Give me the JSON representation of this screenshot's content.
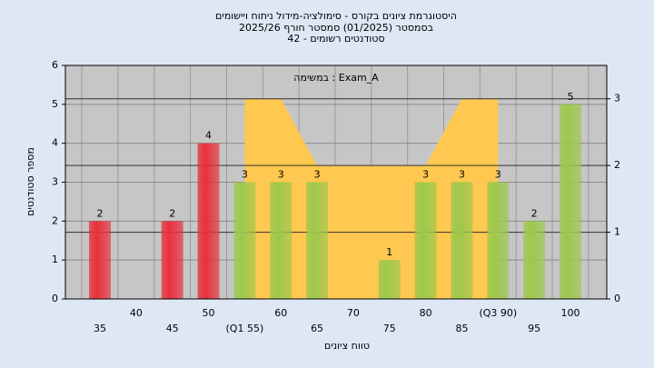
{
  "chart_data": {
    "type": "bar",
    "title": "היסטוגרמת ציונים בקורס - סימולציה-מידול ניתוח ויישומים",
    "subtitle": "בסמסטר  (01/2025)  סמסטר חורף 2025/26",
    "caption": "סטודנטים רשומים - 42",
    "annotation": "במשימה : Exam_A",
    "x_label": "טווח ציונים",
    "y_label": "מספר סטודנטים",
    "categories": [
      "35",
      "40",
      "45",
      "50",
      "(Q1 55)",
      "60",
      "65",
      "70",
      "75",
      "80",
      "85",
      "(Q3 90)",
      "95",
      "100"
    ],
    "series": [
      {
        "type": "bar",
        "values": [
          2,
          0,
          2,
          4,
          3,
          3,
          3,
          0,
          1,
          3,
          3,
          3,
          2,
          5
        ],
        "colors": [
          "#e8303c",
          "#e8303c",
          "#e8303c",
          "#e8303c",
          "#9cc84c",
          "#9cc84c",
          "#9cc84c",
          "#9cc84c",
          "#9cc84c",
          "#9cc84c",
          "#9cc84c",
          "#9cc84c",
          "#9cc84c",
          "#9cc84c"
        ]
      },
      {
        "type": "area",
        "axis": "y2",
        "color": "#ffc850",
        "values": [
          null,
          null,
          null,
          null,
          3,
          3,
          2,
          2,
          2,
          2,
          3,
          3,
          null,
          null
        ]
      }
    ],
    "ylim": [
      0,
      6
    ],
    "yticks": [
      0,
      1,
      2,
      3,
      4,
      5,
      6
    ],
    "y2lim": [
      0,
      3.5
    ],
    "y2ticks": [
      0,
      1,
      2,
      3
    ],
    "grid": true
  }
}
